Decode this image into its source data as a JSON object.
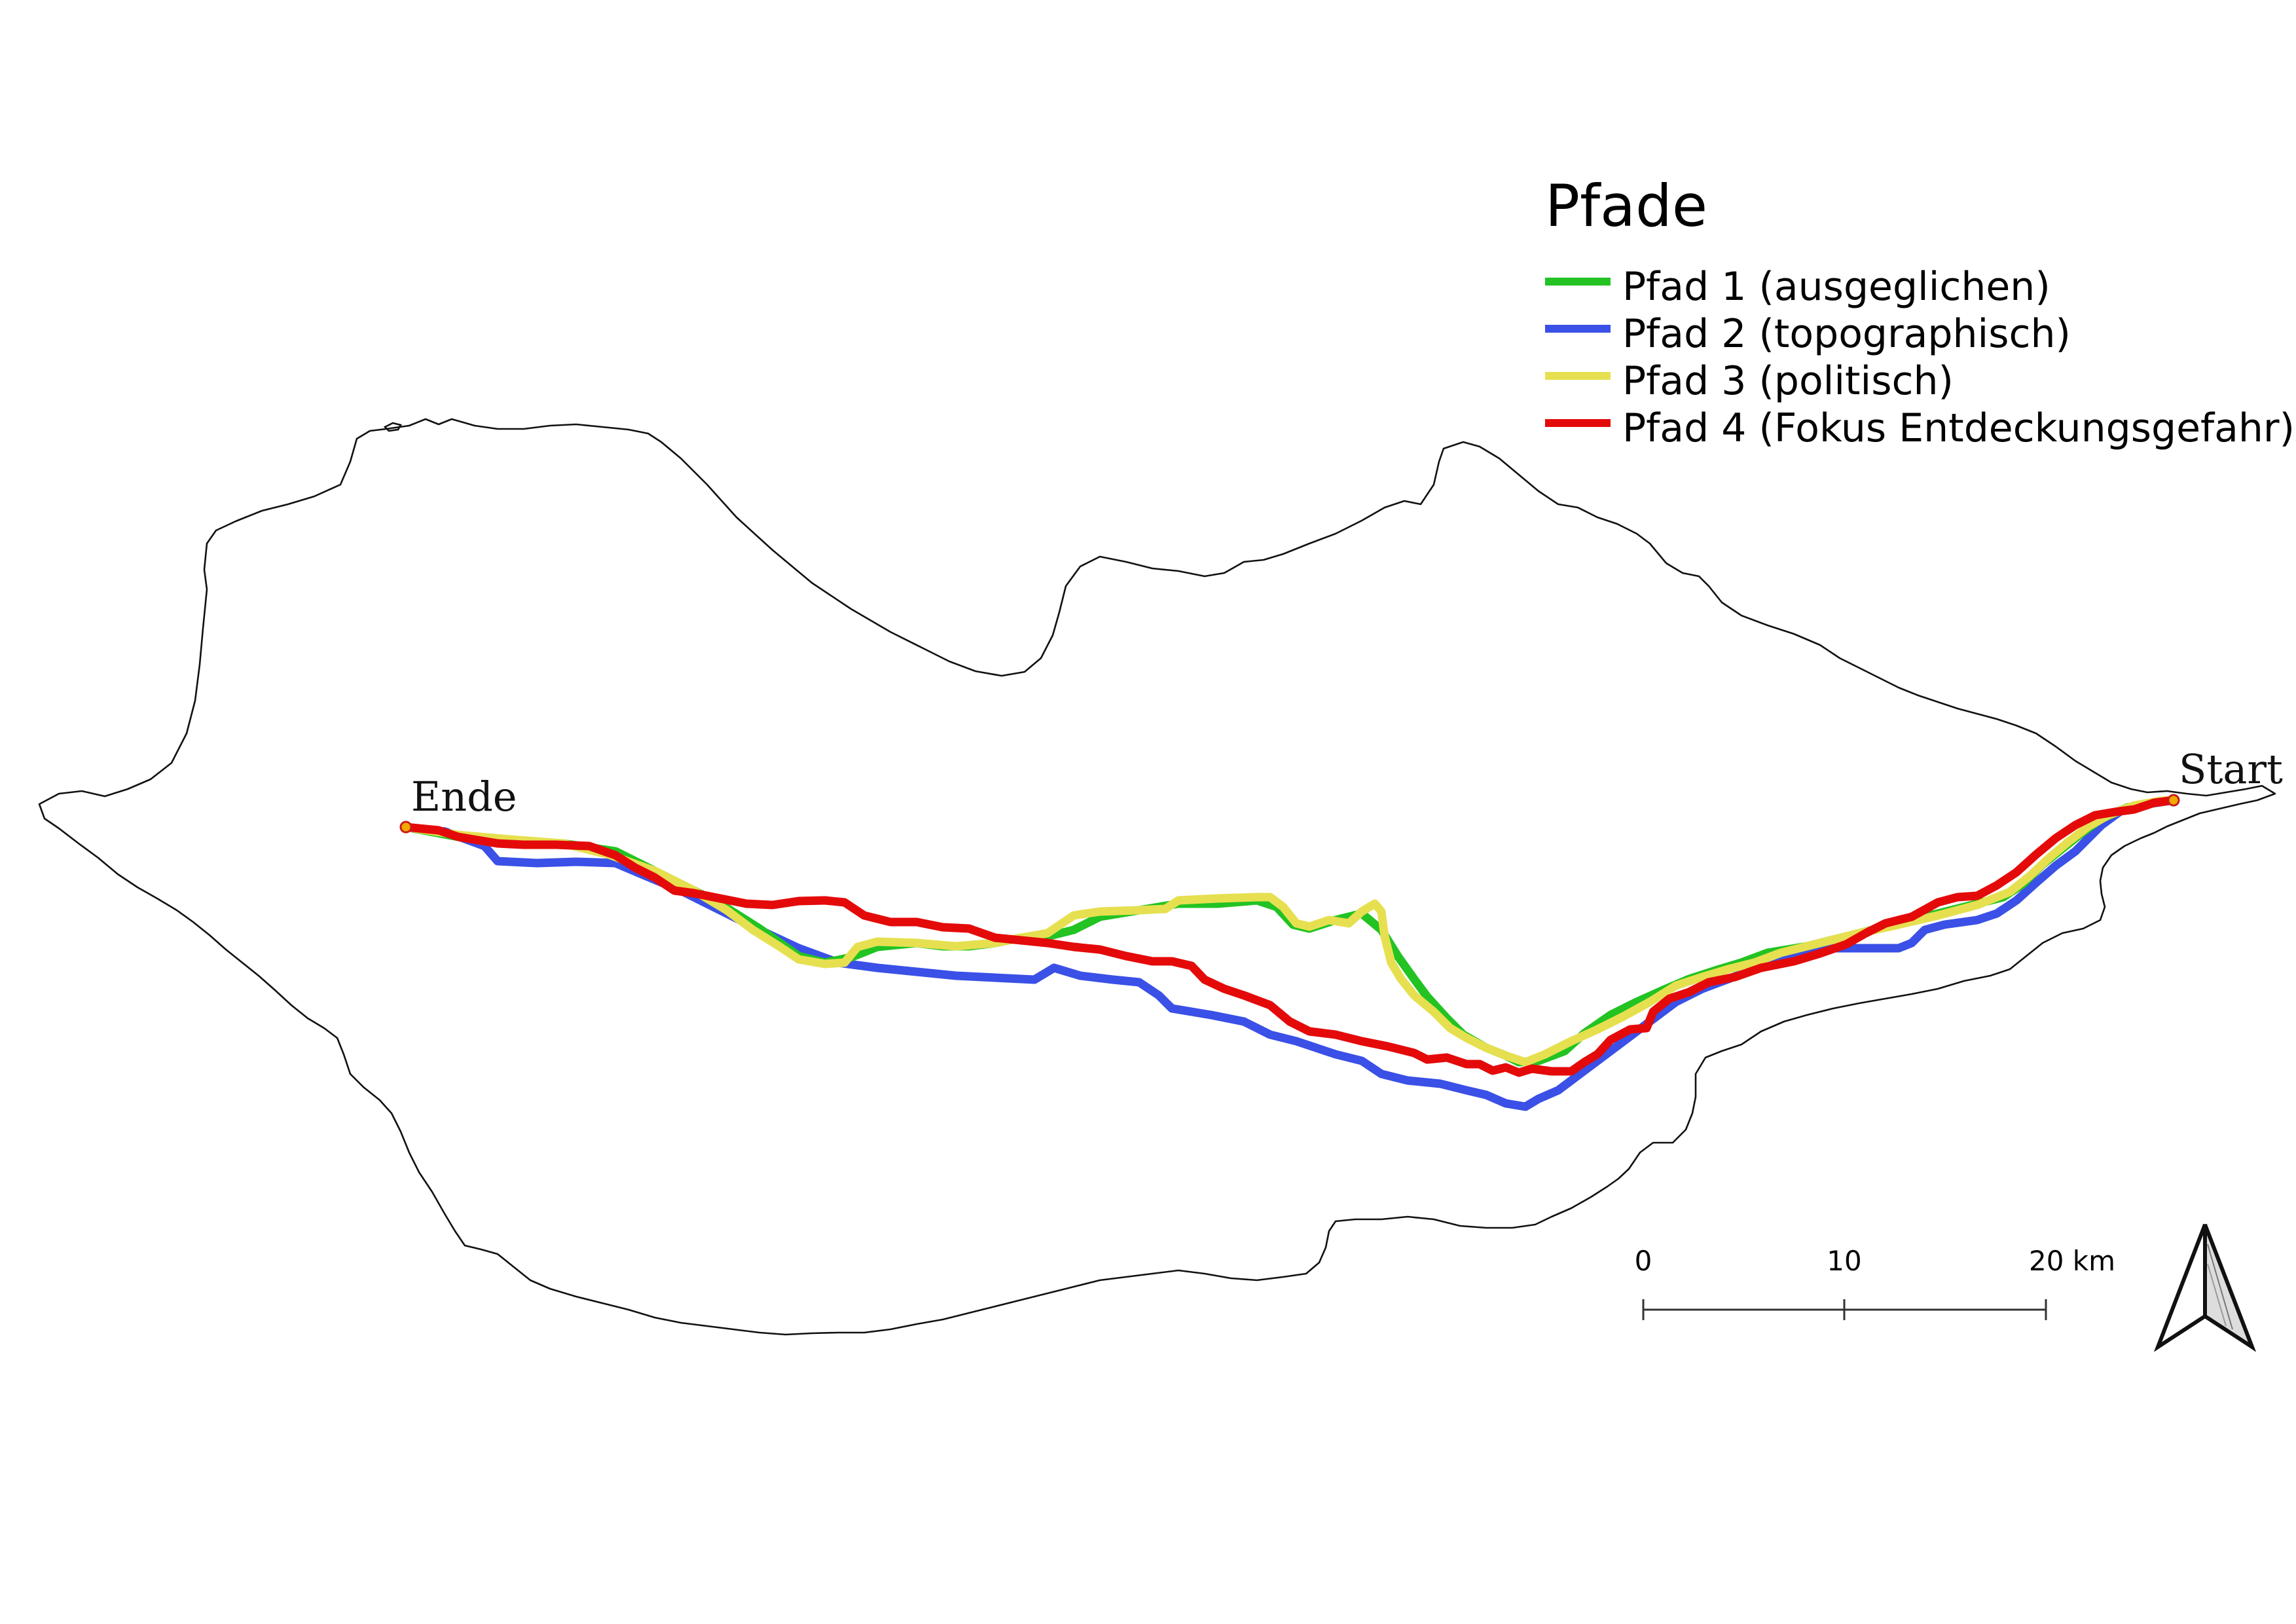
{
  "legend": {
    "title": "Pfade",
    "items": [
      {
        "label": "Pfad 1 (ausgeglichen)",
        "color": "#22c322"
      },
      {
        "label": "Pfad 2 (topographisch)",
        "color": "#3a50e6"
      },
      {
        "label": "Pfad 3 (politisch)",
        "color": "#e6e050"
      },
      {
        "label": "Pfad 4 (Fokus Entdeckungsgefahr)",
        "color": "#e40a0a"
      }
    ]
  },
  "places": {
    "start": "Start",
    "end": "Ende"
  },
  "scalebar": {
    "ticks": [
      "0",
      "10",
      "20 km"
    ]
  },
  "north_arrow": {
    "icon": "north-arrow-icon"
  },
  "colors": {
    "outline": "#111111",
    "marker_fill": "#f2a800",
    "marker_stroke": "#c81e1e"
  }
}
